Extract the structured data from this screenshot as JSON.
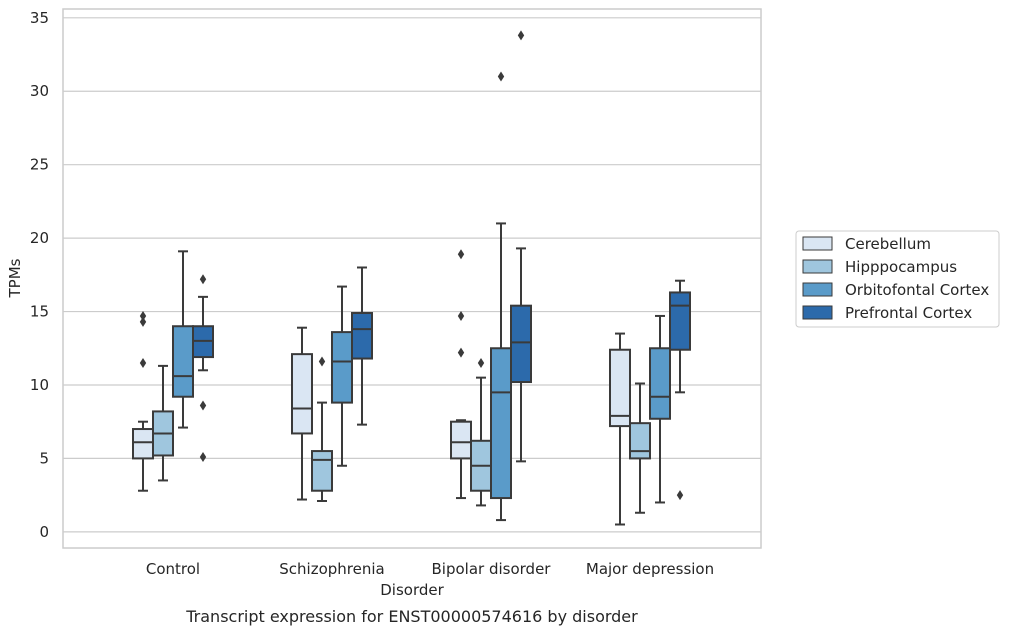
{
  "chart_data": {
    "type": "box",
    "caption": "Transcript expression for ENST00000574616 by disorder",
    "xlabel": "Disorder",
    "ylabel": "TPMs",
    "ylim": [
      -1.1,
      35.6
    ],
    "yticks": [
      0,
      5,
      10,
      15,
      20,
      25,
      30,
      35
    ],
    "grid": "horizontal",
    "legend_position": "right",
    "categories": [
      "Control",
      "Schizophrenia",
      "Bipolar disorder",
      "Major depression"
    ],
    "series": [
      {
        "name": "Cerebellum",
        "color": "#dae6f3",
        "boxes": [
          {
            "whislo": 2.8,
            "q1": 5.0,
            "med": 6.1,
            "q3": 7.0,
            "whishi": 7.5,
            "fliers": [
              11.5,
              14.3,
              14.7
            ]
          },
          {
            "whislo": 2.2,
            "q1": 6.7,
            "med": 8.4,
            "q3": 12.1,
            "whishi": 13.9,
            "fliers": []
          },
          {
            "whislo": 2.3,
            "q1": 5.0,
            "med": 6.1,
            "q3": 7.5,
            "whishi": 7.6,
            "fliers": [
              12.2,
              14.7,
              18.9
            ]
          },
          {
            "whislo": 0.5,
            "q1": 7.2,
            "med": 7.9,
            "q3": 12.4,
            "whishi": 13.5,
            "fliers": []
          }
        ]
      },
      {
        "name": "Hipppocampus",
        "color": "#9fc6de",
        "boxes": [
          {
            "whislo": 3.5,
            "q1": 5.2,
            "med": 6.7,
            "q3": 8.2,
            "whishi": 11.3,
            "fliers": []
          },
          {
            "whislo": 2.1,
            "q1": 2.8,
            "med": 4.9,
            "q3": 5.5,
            "whishi": 8.8,
            "fliers": [
              11.6
            ]
          },
          {
            "whislo": 1.8,
            "q1": 2.8,
            "med": 4.5,
            "q3": 6.2,
            "whishi": 10.5,
            "fliers": [
              11.5
            ]
          },
          {
            "whislo": 1.3,
            "q1": 5.0,
            "med": 5.5,
            "q3": 7.4,
            "whishi": 10.1,
            "fliers": []
          }
        ]
      },
      {
        "name": "Orbitofontal Cortex",
        "color": "#5a9bc9",
        "boxes": [
          {
            "whislo": 7.1,
            "q1": 9.2,
            "med": 10.6,
            "q3": 14.0,
            "whishi": 19.1,
            "fliers": []
          },
          {
            "whislo": 4.5,
            "q1": 8.8,
            "med": 11.6,
            "q3": 13.6,
            "whishi": 16.7,
            "fliers": []
          },
          {
            "whislo": 0.8,
            "q1": 2.3,
            "med": 9.5,
            "q3": 12.5,
            "whishi": 21.0,
            "fliers": [
              31.0
            ]
          },
          {
            "whislo": 2.0,
            "q1": 7.7,
            "med": 9.2,
            "q3": 12.5,
            "whishi": 14.7,
            "fliers": []
          }
        ]
      },
      {
        "name": "Prefrontal Cortex",
        "color": "#2c6aab",
        "boxes": [
          {
            "whislo": 11.0,
            "q1": 11.9,
            "med": 13.0,
            "q3": 14.0,
            "whishi": 16.0,
            "fliers": [
              5.1,
              8.6,
              17.2
            ]
          },
          {
            "whislo": 7.3,
            "q1": 11.8,
            "med": 13.8,
            "q3": 14.9,
            "whishi": 18.0,
            "fliers": []
          },
          {
            "whislo": 4.8,
            "q1": 10.2,
            "med": 12.9,
            "q3": 15.4,
            "whishi": 19.3,
            "fliers": [
              33.8
            ]
          },
          {
            "whislo": 9.5,
            "q1": 12.4,
            "med": 15.4,
            "q3": 16.3,
            "whishi": 17.1,
            "fliers": [
              2.5
            ]
          }
        ]
      }
    ]
  }
}
